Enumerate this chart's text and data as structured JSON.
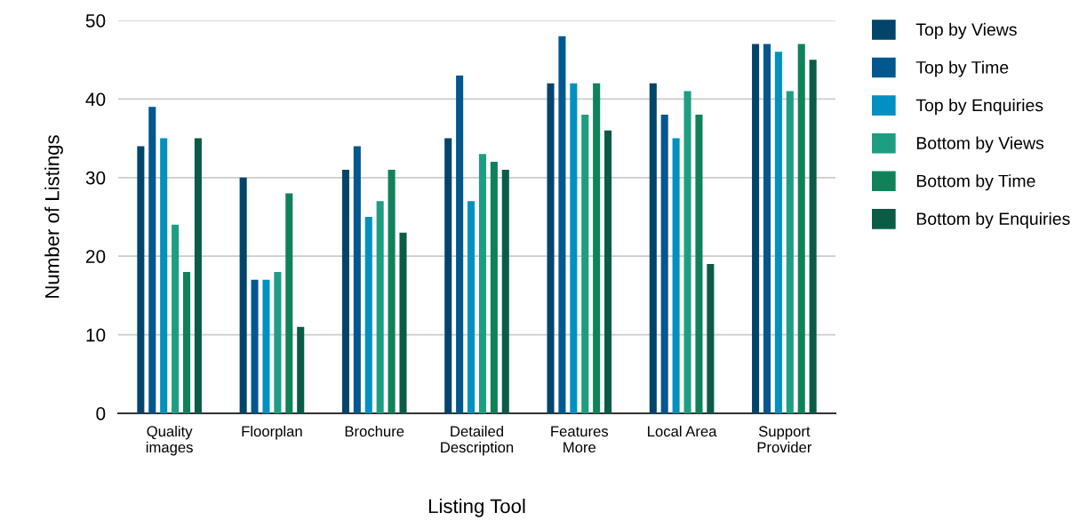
{
  "chart_data": {
    "type": "bar",
    "xlabel": "Listing Tool",
    "ylabel": "Number of Listings",
    "categories": [
      "Quality\nimages",
      "Floorplan",
      "Brochure",
      "Detailed\nDescription",
      "Features\nMore",
      "Local Area",
      "Support\nProvider"
    ],
    "series": [
      {
        "name": "Top by Views",
        "color": "#03456a",
        "values": [
          34,
          30,
          31,
          35,
          42,
          42,
          47
        ]
      },
      {
        "name": "Top by Time",
        "color": "#02578f",
        "values": [
          39,
          17,
          34,
          43,
          48,
          38,
          47
        ]
      },
      {
        "name": "Top by Enquiries",
        "color": "#0091c0",
        "values": [
          35,
          17,
          25,
          27,
          42,
          35,
          46
        ]
      },
      {
        "name": "Bottom by Views",
        "color": "#1d9e82",
        "values": [
          24,
          18,
          27,
          33,
          38,
          41,
          41
        ]
      },
      {
        "name": "Bottom by Time",
        "color": "#0f8259",
        "values": [
          18,
          28,
          31,
          32,
          42,
          38,
          47
        ]
      },
      {
        "name": "Bottom by Enquiries",
        "color": "#0b5c47",
        "values": [
          35,
          11,
          23,
          31,
          36,
          19,
          45
        ]
      }
    ],
    "ylim": [
      0,
      50
    ],
    "yticks": [
      0,
      10,
      20,
      30,
      40,
      50
    ],
    "grid": "y",
    "legend": "right"
  }
}
